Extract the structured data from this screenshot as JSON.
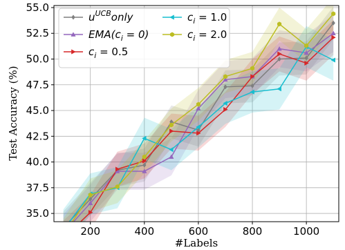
{
  "chart_data": {
    "type": "line",
    "xlabel": "#Labels",
    "ylabel": "Test Accuracy (%)",
    "xlim": [
      65,
      1120
    ],
    "ylim": [
      34.2,
      55.2
    ],
    "xticks": [
      200,
      400,
      600,
      800,
      1000
    ],
    "xtick_labels": [
      "200",
      "400",
      "600",
      "800",
      "1000"
    ],
    "yticks": [
      35.0,
      37.5,
      40.0,
      42.5,
      45.0,
      47.5,
      50.0,
      52.5,
      55.0
    ],
    "ytick_labels": [
      "35.0",
      "37.5",
      "40.0",
      "42.5",
      "45.0",
      "47.5",
      "50.0",
      "52.5",
      "55.0"
    ],
    "grid": true,
    "legend_position": "top-left",
    "x": [
      100,
      200,
      300,
      400,
      500,
      600,
      700,
      800,
      900,
      1000,
      1100
    ],
    "series": [
      {
        "name": "u^UCB only",
        "legend_main": "u",
        "legend_sup": "UCB",
        "legend_tail": "only",
        "color": "#7f7f7f",
        "marker": "diamond",
        "values": [
          33.6,
          36.4,
          39.2,
          39.7,
          43.9,
          43.1,
          47.3,
          47.4,
          50.0,
          50.1,
          53.5
        ],
        "band": 1.6
      },
      {
        "name": "EMA(c_i = 0)",
        "legend_main": "EMA(",
        "legend_sub_pre": "c",
        "legend_sub": "i",
        "legend_tail": " = 0)",
        "color": "#9467bd",
        "marker": "triangle",
        "values": [
          33.1,
          36.0,
          39.1,
          39.1,
          40.5,
          45.2,
          48.0,
          48.3,
          51.0,
          50.6,
          52.5
        ],
        "band": 1.8
      },
      {
        "name": "c_i = 0.5",
        "legend_main": "",
        "legend_sub_pre": "c",
        "legend_sub": "i",
        "legend_tail": " = 0.5",
        "color": "#d62728",
        "marker": "triangle-right",
        "values": [
          32.6,
          35.1,
          39.3,
          40.1,
          43.0,
          42.8,
          45.1,
          48.3,
          50.5,
          49.6,
          52.1
        ],
        "band": 1.7
      },
      {
        "name": "c_i = 1.0",
        "legend_main": "",
        "legend_sub_pre": "c",
        "legend_sub": "i",
        "legend_tail": " = 1.0",
        "color": "#17becf",
        "marker": "triangle-left",
        "values": [
          33.4,
          36.9,
          37.5,
          42.3,
          41.2,
          43.4,
          45.7,
          46.8,
          47.1,
          51.2,
          49.9
        ],
        "band": 2.0
      },
      {
        "name": "c_i = 2.0",
        "legend_main": "",
        "legend_sub_pre": "c",
        "legend_sub": "i",
        "legend_tail": " = 2.0",
        "color": "#bcbd22",
        "marker": "hexagon",
        "values": [
          32.9,
          36.8,
          37.6,
          40.5,
          43.6,
          45.6,
          48.3,
          49.1,
          53.4,
          51.3,
          54.4
        ],
        "band": 1.6
      }
    ]
  }
}
